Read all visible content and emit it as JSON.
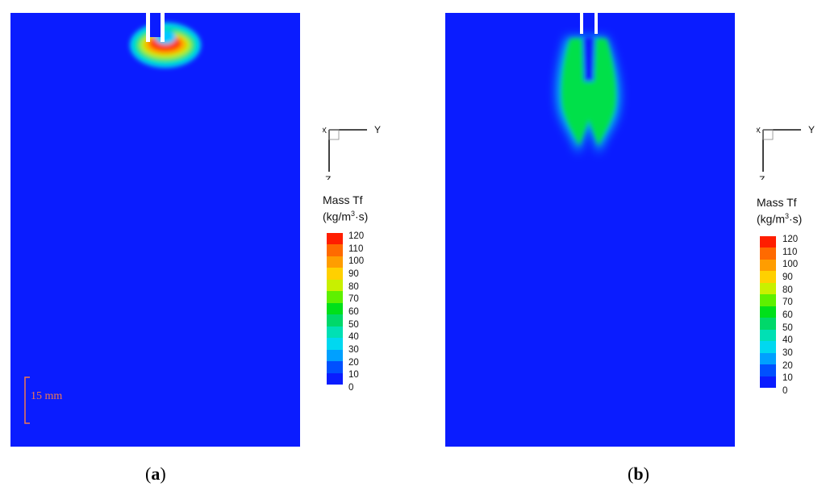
{
  "panels": [
    {
      "id": "a",
      "caption_letter": "a",
      "caption_open": "(",
      "caption_close": ")"
    },
    {
      "id": "b",
      "caption_letter": "b",
      "caption_open": "(",
      "caption_close": ")"
    }
  ],
  "axes": {
    "x_label": "X",
    "y_label": "Y",
    "z_label": "Z"
  },
  "legend": {
    "title_line1": "Mass Tf",
    "unit_prefix": "(kg/m",
    "unit_sup": "3",
    "unit_suffix": "·s)",
    "ticks": [
      "120",
      "110",
      "100",
      "90",
      "80",
      "70",
      "60",
      "50",
      "40",
      "30",
      "20",
      "10",
      "0"
    ],
    "colors": [
      "#ff1e00",
      "#ff6a00",
      "#ff9d00",
      "#ffd000",
      "#c8f000",
      "#5ef000",
      "#00e01a",
      "#00d86a",
      "#00e0b4",
      "#00d8f0",
      "#00a0ff",
      "#0050ff",
      "#0a1cff"
    ]
  },
  "scale_bar": {
    "label": "15 mm"
  },
  "colors": {
    "background_field": "#0a1cff",
    "scale_color": "#f07850"
  }
}
